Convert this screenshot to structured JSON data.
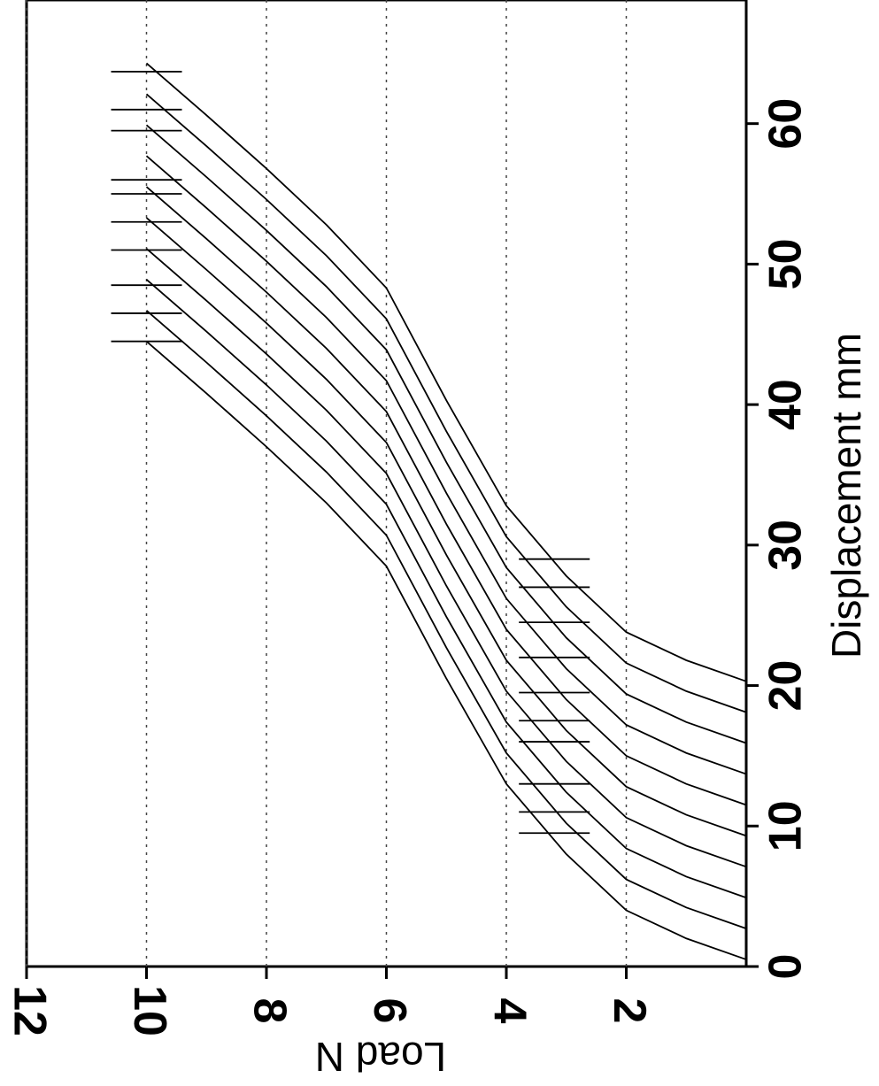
{
  "chart_data": {
    "type": "line",
    "x_label": "Displacement mm",
    "y_label": "Load N",
    "xlim": [
      0,
      68.8
    ],
    "xticks": [
      0,
      10,
      20,
      30,
      40,
      50,
      60
    ],
    "ylim": [
      0,
      12
    ],
    "yticks": [
      2,
      4,
      6,
      8,
      10,
      12
    ],
    "grid": true,
    "orientation": "rotated",
    "series": [
      {
        "color": "#000000",
        "x": [
          0.5,
          2,
          4,
          8,
          13,
          20.5,
          28.5,
          33,
          37,
          40.8,
          44.5
        ],
        "values": [
          0,
          1,
          2,
          3,
          4,
          5,
          6,
          7,
          8,
          9,
          10
        ]
      },
      {
        "color": "#000000",
        "x": [
          2.7,
          4.2,
          6.2,
          10.2,
          15.2,
          22.7,
          30.7,
          35.2,
          39.2,
          43,
          46.7
        ],
        "values": [
          0,
          1,
          2,
          3,
          4,
          5,
          6,
          7,
          8,
          9,
          10
        ]
      },
      {
        "color": "#000000",
        "x": [
          4.9,
          6.4,
          8.4,
          12.4,
          17.4,
          24.9,
          32.9,
          37.4,
          41.4,
          45.2,
          48.9
        ],
        "values": [
          0,
          1,
          2,
          3,
          4,
          5,
          6,
          7,
          8,
          9,
          10
        ]
      },
      {
        "color": "#000000",
        "x": [
          7.1,
          8.6,
          10.6,
          14.6,
          19.6,
          27.1,
          35.1,
          39.6,
          43.6,
          47.4,
          51.1
        ],
        "values": [
          0,
          1,
          2,
          3,
          4,
          5,
          6,
          7,
          8,
          9,
          10
        ]
      },
      {
        "color": "#000000",
        "x": [
          9.3,
          10.8,
          12.8,
          16.8,
          21.8,
          29.3,
          37.3,
          41.8,
          45.8,
          49.6,
          53.3
        ],
        "values": [
          0,
          1,
          2,
          3,
          4,
          5,
          6,
          7,
          8,
          9,
          10
        ]
      },
      {
        "color": "#000000",
        "x": [
          11.5,
          13,
          15,
          19,
          24,
          31.5,
          39.5,
          44,
          48,
          51.8,
          55.5
        ],
        "values": [
          0,
          1,
          2,
          3,
          4,
          5,
          6,
          7,
          8,
          9,
          10
        ]
      },
      {
        "color": "#000000",
        "x": [
          13.7,
          15.2,
          17.2,
          21.2,
          26.2,
          33.7,
          41.7,
          46.2,
          50.2,
          54,
          57.7
        ],
        "values": [
          0,
          1,
          2,
          3,
          4,
          5,
          6,
          7,
          8,
          9,
          10
        ]
      },
      {
        "color": "#000000",
        "x": [
          15.9,
          17.4,
          19.4,
          23.4,
          28.4,
          35.9,
          43.9,
          48.4,
          52.4,
          56.2,
          59.9
        ],
        "values": [
          0,
          1,
          2,
          3,
          4,
          5,
          6,
          7,
          8,
          9,
          10
        ]
      },
      {
        "color": "#000000",
        "x": [
          18.1,
          19.6,
          21.6,
          25.6,
          30.6,
          38.1,
          46.1,
          50.6,
          54.6,
          58.4,
          62.1
        ],
        "values": [
          0,
          1,
          2,
          3,
          4,
          5,
          6,
          7,
          8,
          9,
          10
        ]
      },
      {
        "color": "#000000",
        "x": [
          20.3,
          21.8,
          23.8,
          27.8,
          32.8,
          40.3,
          48.3,
          52.8,
          56.8,
          60.6,
          64.3
        ],
        "values": [
          0,
          1,
          2,
          3,
          4,
          5,
          6,
          7,
          8,
          9,
          10
        ]
      }
    ],
    "markers": [
      {
        "load": 10,
        "x": [
          44.5,
          46.5,
          48.5,
          51,
          53,
          55,
          56,
          59.5,
          61,
          63.7
        ]
      },
      {
        "load": 3.2,
        "x": [
          9.5,
          11,
          13,
          16,
          17.5,
          19.5,
          22,
          24.5,
          27,
          29
        ]
      }
    ]
  }
}
